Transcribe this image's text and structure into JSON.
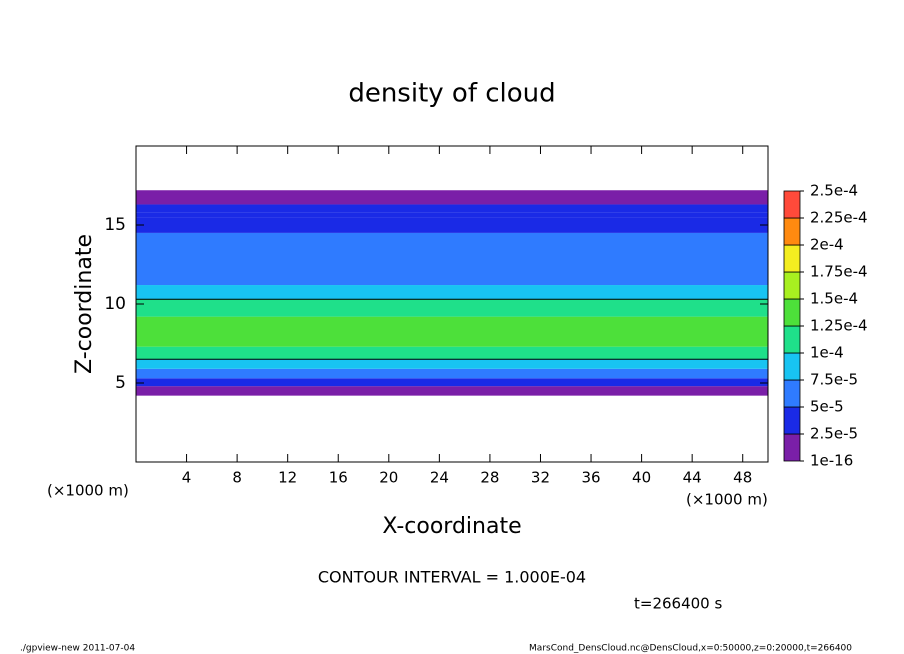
{
  "chart_data": {
    "type": "heatmap",
    "title": "density of cloud",
    "xlabel": "X-coordinate",
    "ylabel": "Z-coordinate",
    "xunit": "(×1000 m)",
    "xlim": [
      0,
      50
    ],
    "ylim": [
      0,
      20
    ],
    "xticks": [
      4,
      8,
      12,
      16,
      20,
      24,
      28,
      32,
      36,
      40,
      44,
      48
    ],
    "yticks": [
      5,
      10,
      15
    ],
    "z_edges": [
      4.2,
      4.8,
      5.3,
      5.9,
      6.5,
      7.3,
      9.2,
      10.3,
      11.2,
      12.5,
      14.5,
      15.5,
      15.8,
      16.3,
      17.2
    ],
    "values": [
      1e-05,
      3e-05,
      5.5e-05,
      8e-05,
      0.00011,
      0.00014,
      0.00011,
      8e-05,
      6e-05,
      5e-05,
      4e-05,
      2.8e-05,
      2.6e-05,
      1e-05
    ],
    "colorbar": {
      "ticks": [
        {
          "value": 1e-16,
          "label": "1e-16"
        },
        {
          "value": 2.5e-05,
          "label": "2.5e-5"
        },
        {
          "value": 5e-05,
          "label": "5e-5"
        },
        {
          "value": 7.5e-05,
          "label": "7.5e-5"
        },
        {
          "value": 0.0001,
          "label": "1e-4"
        },
        {
          "value": 0.000125,
          "label": "1.25e-4"
        },
        {
          "value": 0.00015,
          "label": "1.5e-4"
        },
        {
          "value": 0.000175,
          "label": "1.75e-4"
        },
        {
          "value": 0.0002,
          "label": "2e-4"
        },
        {
          "value": 0.000225,
          "label": "2.25e-4"
        },
        {
          "value": 0.00025,
          "label": "2.5e-4"
        }
      ],
      "colors": [
        "#7a1fa8",
        "#1a2ae6",
        "#2f7bff",
        "#18c4f2",
        "#1fe08a",
        "#4de03a",
        "#a8f020",
        "#f4ee20",
        "#ff8a10",
        "#ff4a3a"
      ]
    },
    "contour_interval": {
      "value": 0.0001,
      "label": "CONTOUR INTERVAL = 1.000E-04"
    },
    "time_label": "t=266400 s",
    "footer_left": "./gpview-new  2011-07-04",
    "footer_right": "MarsCond_DensCloud.nc@DensCloud,x=0:50000,z=0:20000,t=266400"
  }
}
